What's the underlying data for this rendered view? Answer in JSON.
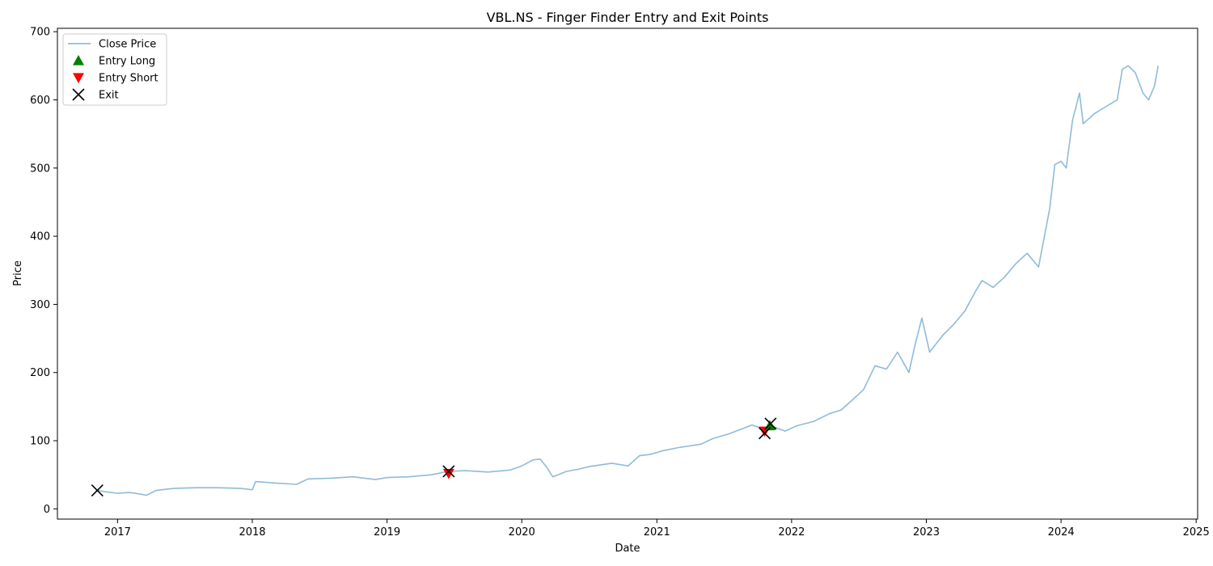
{
  "chart_data": {
    "type": "line",
    "title": "VBL.NS - Finger Finder Entry and Exit Points",
    "xlabel": "Date",
    "ylabel": "Price",
    "xlim": [
      "2016-07-22",
      "2025-01-05"
    ],
    "ylim": [
      -15,
      705
    ],
    "x_ticks": [
      "2017",
      "2018",
      "2019",
      "2020",
      "2021",
      "2022",
      "2023",
      "2024",
      "2025"
    ],
    "y_ticks": [
      0,
      100,
      200,
      300,
      400,
      500,
      600,
      700
    ],
    "grid": false,
    "legend_position": "top-left",
    "colors": {
      "close_price": "#1f77b4",
      "entry_long": "#008000",
      "entry_short": "#ff0000",
      "exit": "#000000"
    },
    "legend": [
      {
        "label": "Close Price",
        "marker": "line",
        "color": "#7fb0d6"
      },
      {
        "label": "Entry Long",
        "marker": "triangle-up",
        "color": "#008000"
      },
      {
        "label": "Entry Short",
        "marker": "triangle-down",
        "color": "#ff0000"
      },
      {
        "label": "Exit",
        "marker": "x",
        "color": "#000000"
      }
    ],
    "series": [
      {
        "name": "Close Price",
        "x": [
          "2016-11-07",
          "2016-12-01",
          "2017-01-01",
          "2017-02-01",
          "2017-03-01",
          "2017-03-20",
          "2017-04-15",
          "2017-06-01",
          "2017-08-01",
          "2017-10-01",
          "2017-12-01",
          "2018-01-01",
          "2018-01-10",
          "2018-03-01",
          "2018-05-01",
          "2018-06-01",
          "2018-08-01",
          "2018-10-01",
          "2018-12-01",
          "2019-01-01",
          "2019-03-01",
          "2019-05-01",
          "2019-06-15",
          "2019-08-01",
          "2019-10-01",
          "2019-12-01",
          "2020-01-01",
          "2020-02-01",
          "2020-02-20",
          "2020-03-10",
          "2020-03-25",
          "2020-05-01",
          "2020-06-01",
          "2020-07-01",
          "2020-09-01",
          "2020-10-15",
          "2020-11-15",
          "2020-12-15",
          "2021-01-15",
          "2021-03-01",
          "2021-05-01",
          "2021-06-01",
          "2021-07-15",
          "2021-09-15",
          "2021-10-15",
          "2021-11-15",
          "2021-12-15",
          "2022-01-15",
          "2022-03-01",
          "2022-04-15",
          "2022-05-15",
          "2022-06-15",
          "2022-07-15",
          "2022-08-15",
          "2022-09-15",
          "2022-10-15",
          "2022-11-15",
          "2022-12-01",
          "2022-12-20",
          "2023-01-10",
          "2023-02-15",
          "2023-03-15",
          "2023-04-15",
          "2023-05-15",
          "2023-06-01",
          "2023-07-01",
          "2023-08-01",
          "2023-09-01",
          "2023-10-01",
          "2023-11-01",
          "2023-12-01",
          "2023-12-15",
          "2024-01-01",
          "2024-01-15",
          "2024-02-01",
          "2024-02-20",
          "2024-03-01",
          "2024-04-01",
          "2024-05-01",
          "2024-06-01",
          "2024-06-15",
          "2024-07-01",
          "2024-07-20",
          "2024-08-10",
          "2024-08-25",
          "2024-09-10",
          "2024-09-20"
        ],
        "values": [
          27,
          25,
          23,
          24,
          22,
          20,
          27,
          30,
          31,
          31,
          30,
          28,
          40,
          38,
          36,
          44,
          45,
          47,
          43,
          46,
          47,
          50,
          55,
          56,
          54,
          57,
          63,
          72,
          73,
          60,
          47,
          55,
          58,
          62,
          67,
          63,
          78,
          80,
          85,
          90,
          95,
          103,
          110,
          123,
          118,
          120,
          114,
          122,
          128,
          140,
          145,
          160,
          175,
          210,
          205,
          230,
          200,
          240,
          280,
          230,
          255,
          270,
          290,
          320,
          335,
          325,
          340,
          360,
          375,
          355,
          440,
          505,
          510,
          500,
          570,
          610,
          565,
          580,
          590,
          600,
          645,
          650,
          640,
          610,
          600,
          620,
          650
        ]
      }
    ],
    "markers": [
      {
        "name": "Entry Short",
        "shape": "triangle-down",
        "points": [
          {
            "x": "2019-06-17",
            "y": 52
          },
          {
            "x": "2021-10-20",
            "y": 114
          }
        ]
      },
      {
        "name": "Entry Long",
        "shape": "triangle-up",
        "points": [
          {
            "x": "2021-11-03",
            "y": 122
          }
        ]
      },
      {
        "name": "Exit",
        "shape": "x",
        "points": [
          {
            "x": "2016-11-07",
            "y": 27
          },
          {
            "x": "2019-06-17",
            "y": 55
          },
          {
            "x": "2021-10-20",
            "y": 111
          },
          {
            "x": "2021-11-05",
            "y": 125
          }
        ]
      }
    ]
  }
}
